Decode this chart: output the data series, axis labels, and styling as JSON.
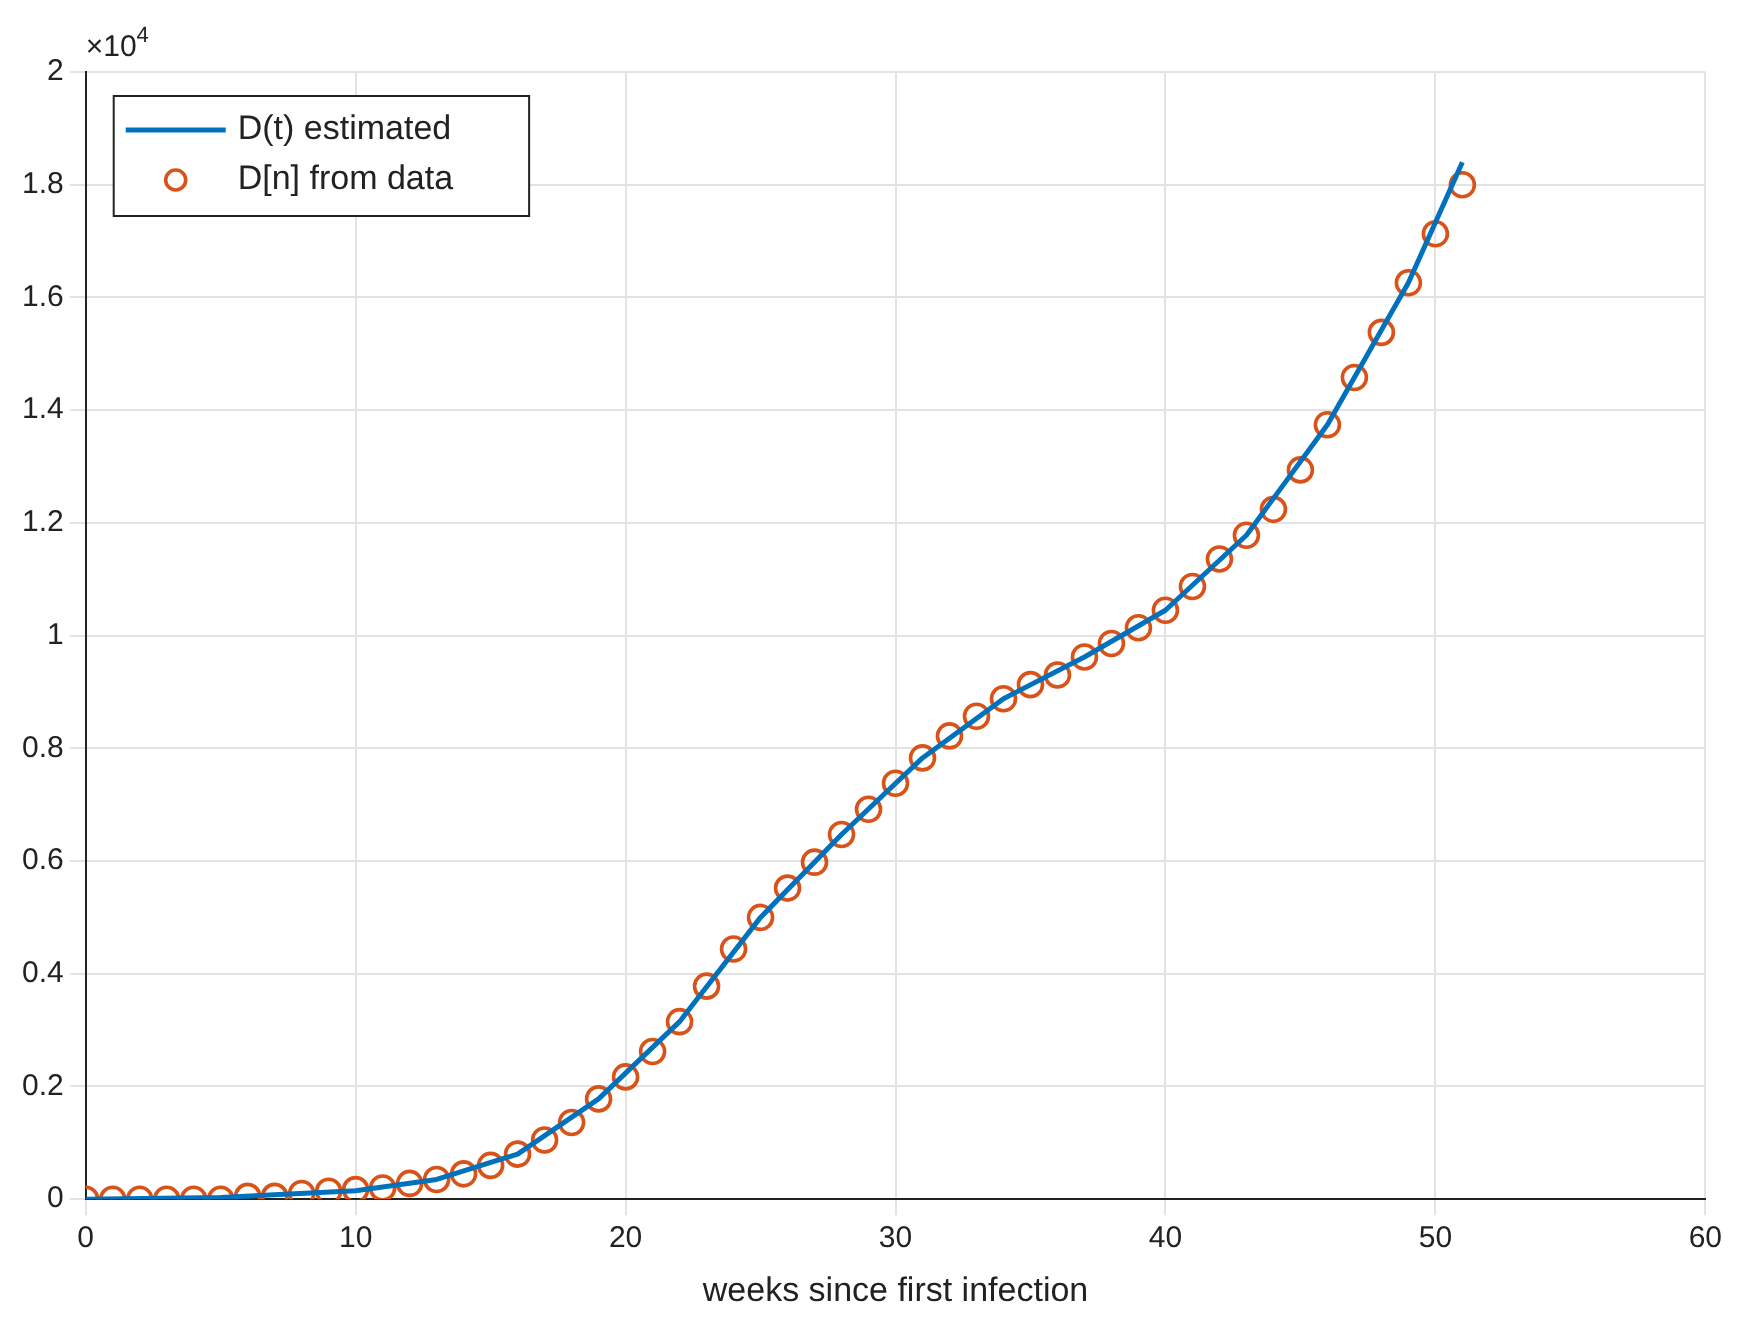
{
  "chart_data": {
    "type": "scatter",
    "xlabel": "weeks since first infection",
    "xlim": [
      0,
      60
    ],
    "xticks": [
      0,
      10,
      20,
      30,
      40,
      50,
      60
    ],
    "ylim": [
      0,
      2
    ],
    "yticks": [
      0,
      0.2,
      0.4,
      0.6,
      0.8,
      1,
      1.2,
      1.4,
      1.6,
      1.8,
      2
    ],
    "annotations": [
      "×10$^{4}$"
    ],
    "grid": true,
    "legend": "top left",
    "series": [
      {
        "name": "D(t) estimated",
        "type": "line",
        "color": "#0072bd",
        "marker": "none",
        "line_style": "solid",
        "x": [
          0,
          5,
          10,
          13,
          16,
          19,
          22,
          25,
          28,
          31,
          34,
          37,
          40,
          43,
          46,
          49,
          51
        ],
        "values": [
          0,
          0.003,
          0.015,
          0.035,
          0.08,
          0.178,
          0.315,
          0.5,
          0.647,
          0.783,
          0.888,
          0.962,
          1.045,
          1.178,
          1.374,
          1.626,
          1.84
        ]
      },
      {
        "name": "D[n] from data",
        "type": "scatter",
        "color": "#d95319",
        "marker": "circle",
        "x": [
          0,
          1,
          2,
          3,
          4,
          5,
          6,
          7,
          8,
          9,
          10,
          11,
          12,
          13,
          14,
          15,
          16,
          17,
          18,
          19,
          20,
          21,
          22,
          23,
          24,
          25,
          26,
          27,
          28,
          29,
          30,
          31,
          32,
          33,
          34,
          35,
          36,
          37,
          38,
          39,
          40,
          41,
          42,
          43,
          44,
          45,
          46,
          47,
          48,
          49,
          50,
          51
        ],
        "values": [
          0,
          0,
          0,
          0,
          0,
          0,
          0.005,
          0.005,
          0.01,
          0.014,
          0.017,
          0.02,
          0.028,
          0.035,
          0.045,
          0.06,
          0.08,
          0.105,
          0.136,
          0.178,
          0.217,
          0.262,
          0.315,
          0.378,
          0.444,
          0.5,
          0.552,
          0.598,
          0.647,
          0.692,
          0.738,
          0.783,
          0.822,
          0.857,
          0.888,
          0.913,
          0.93,
          0.962,
          0.986,
          1.014,
          1.045,
          1.087,
          1.136,
          1.178,
          1.224,
          1.294,
          1.374,
          1.458,
          1.538,
          1.626,
          1.713,
          1.8
        ]
      }
    ]
  }
}
